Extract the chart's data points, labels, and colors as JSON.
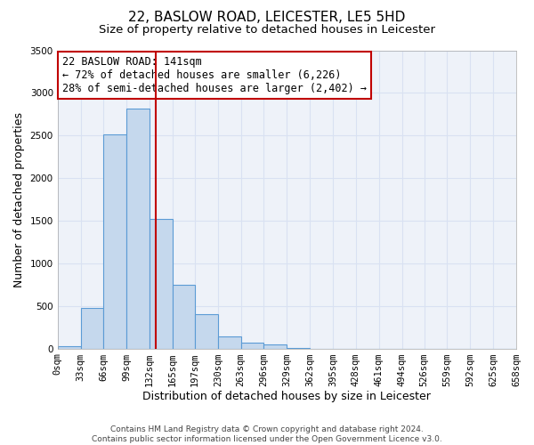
{
  "title": "22, BASLOW ROAD, LEICESTER, LE5 5HD",
  "subtitle": "Size of property relative to detached houses in Leicester",
  "xlabel": "Distribution of detached houses by size in Leicester",
  "ylabel": "Number of detached properties",
  "footer_line1": "Contains HM Land Registry data © Crown copyright and database right 2024.",
  "footer_line2": "Contains public sector information licensed under the Open Government Licence v3.0.",
  "bin_edges": [
    0,
    33,
    66,
    99,
    132,
    165,
    197,
    230,
    263,
    296,
    329,
    362,
    395,
    428,
    461,
    494,
    526,
    559,
    592,
    625,
    658
  ],
  "bin_labels": [
    "0sqm",
    "33sqm",
    "66sqm",
    "99sqm",
    "132sqm",
    "165sqm",
    "197sqm",
    "230sqm",
    "263sqm",
    "296sqm",
    "329sqm",
    "362sqm",
    "395sqm",
    "428sqm",
    "461sqm",
    "494sqm",
    "526sqm",
    "559sqm",
    "592sqm",
    "625sqm",
    "658sqm"
  ],
  "bar_heights": [
    30,
    480,
    2510,
    2820,
    1520,
    750,
    400,
    145,
    65,
    50,
    10,
    0,
    0,
    0,
    0,
    0,
    0,
    0,
    0,
    0
  ],
  "bar_color": "#c5d8ed",
  "bar_edge_color": "#5b9bd5",
  "property_line_x": 141,
  "property_line_color": "#c00000",
  "annotation_line1": "22 BASLOW ROAD: 141sqm",
  "annotation_line2": "← 72% of detached houses are smaller (6,226)",
  "annotation_line3": "28% of semi-detached houses are larger (2,402) →",
  "annotation_box_color": "#ffffff",
  "annotation_box_edge": "#c00000",
  "ylim": [
    0,
    3500
  ],
  "yticks": [
    0,
    500,
    1000,
    1500,
    2000,
    2500,
    3000,
    3500
  ],
  "title_fontsize": 11,
  "subtitle_fontsize": 9.5,
  "xlabel_fontsize": 9,
  "ylabel_fontsize": 9,
  "tick_fontsize": 7.5,
  "annotation_fontsize": 8.5,
  "footer_fontsize": 6.5,
  "grid_color": "#d9e1f2",
  "bg_color": "#eef2f9"
}
